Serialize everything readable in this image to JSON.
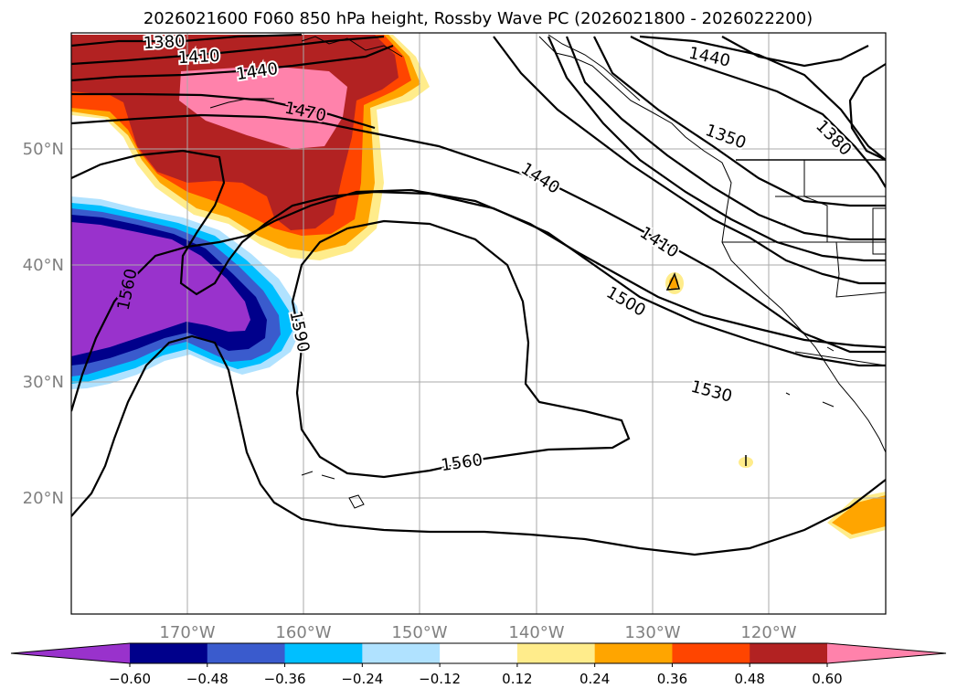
{
  "title": "2026021600 F060 850 hPa height, Rossby Wave PC (2026021800 - 2026022200)",
  "map": {
    "lon_ticks": [
      {
        "value": -170,
        "label": "170°W"
      },
      {
        "value": -160,
        "label": "160°W"
      },
      {
        "value": -150,
        "label": "150°W"
      },
      {
        "value": -140,
        "label": "140°W"
      },
      {
        "value": -130,
        "label": "130°W"
      },
      {
        "value": -120,
        "label": "120°W"
      }
    ],
    "lat_ticks": [
      {
        "value": 50,
        "label": "50°N"
      },
      {
        "value": 40,
        "label": "40°N"
      },
      {
        "value": 30,
        "label": "30°N"
      },
      {
        "value": 20,
        "label": "20°N"
      }
    ],
    "contour_labels": [
      {
        "text": "1380"
      },
      {
        "text": "1410"
      },
      {
        "text": "1440"
      },
      {
        "text": "1470"
      },
      {
        "text": "1440"
      },
      {
        "text": "1350"
      },
      {
        "text": "1380"
      },
      {
        "text": "1440"
      },
      {
        "text": "1410"
      },
      {
        "text": "1500"
      },
      {
        "text": "1560"
      },
      {
        "text": "1590"
      },
      {
        "text": "1530"
      },
      {
        "text": "1560"
      }
    ]
  },
  "colorbar": {
    "colors": [
      "#9932cc",
      "#00008b",
      "#3a5bcd",
      "#00bfff",
      "#b0e2ff",
      "#ffffff",
      "#ffec8b",
      "#ffa500",
      "#ff4500",
      "#b22222",
      "#ff82ab"
    ],
    "tick_labels": [
      "−0.60",
      "−0.48",
      "−0.36",
      "−0.24",
      "−0.12",
      "0.12",
      "0.24",
      "0.36",
      "0.48",
      "0.60"
    ]
  }
}
